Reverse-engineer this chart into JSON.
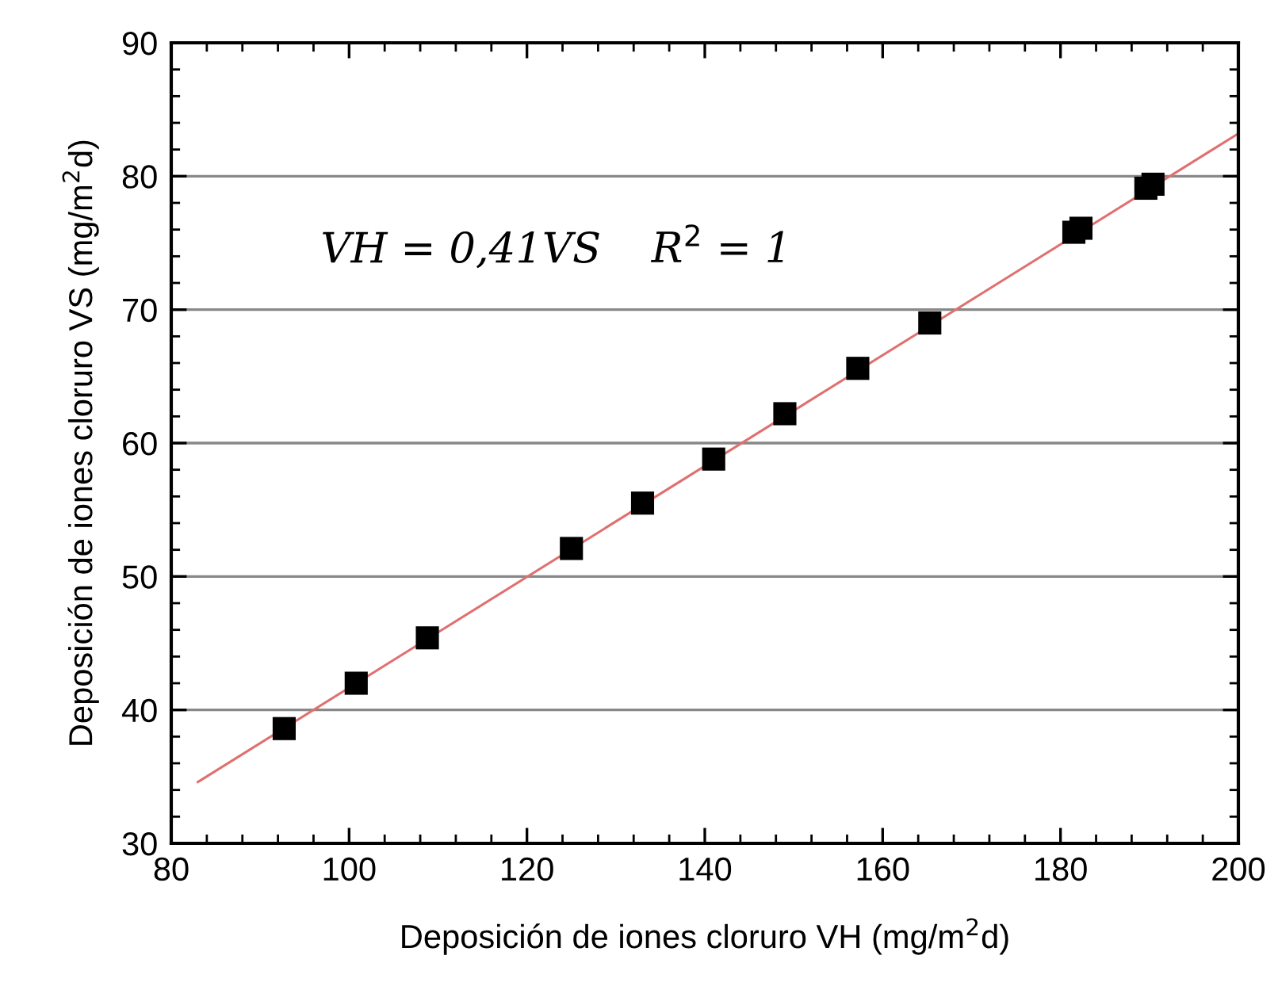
{
  "chart_data": {
    "type": "scatter",
    "xlabel": "Deposición de iones cloruro VH (mg/m$^{2}$d)",
    "ylabel": "Deposición de iones cloruro VS (mg/m$^{2}$d)",
    "xlim": [
      80,
      200
    ],
    "xticks": [
      80,
      100,
      120,
      140,
      160,
      180,
      200
    ],
    "ylim": [
      30,
      90
    ],
    "yticks": [
      30,
      40,
      50,
      60,
      70,
      80,
      90
    ],
    "grid": "y",
    "legend": false,
    "series": [
      {
        "marker": "square",
        "color": "#000000",
        "x": [
          92.7,
          100.8,
          108.8,
          125.0,
          133.0,
          141.0,
          149.0,
          157.2,
          165.3,
          181.5,
          182.3,
          189.6,
          190.4
        ],
        "values": [
          38.6,
          42.0,
          45.4,
          52.1,
          55.5,
          58.8,
          62.2,
          65.6,
          69.0,
          75.8,
          76.1,
          79.1,
          79.4
        ]
      },
      {
        "type": "line",
        "marker": "none",
        "line_style": "solid",
        "color": "#e07070",
        "x": [
          83,
          200
        ],
        "values": [
          34.6,
          83.2
        ]
      }
    ],
    "annotations": [
      "VH = 0,41VS",
      "R$^{2}$ = 1"
    ]
  }
}
